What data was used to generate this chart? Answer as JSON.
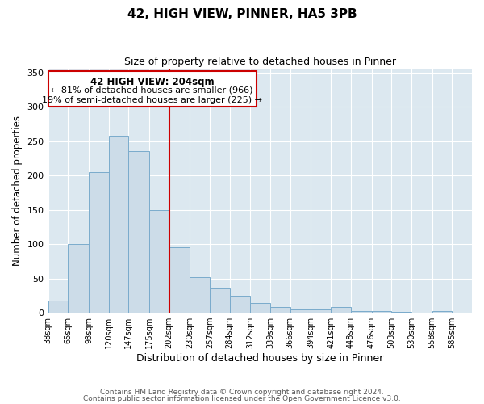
{
  "title": "42, HIGH VIEW, PINNER, HA5 3PB",
  "subtitle": "Size of property relative to detached houses in Pinner",
  "xlabel": "Distribution of detached houses by size in Pinner",
  "ylabel": "Number of detached properties",
  "bar_color": "#ccdce8",
  "bar_edge_color": "#7aabcc",
  "background_color": "#dce8f0",
  "plot_bg_color": "#dce8f0",
  "grid_color": "#ffffff",
  "bin_edges": [
    38,
    65,
    93,
    120,
    147,
    175,
    202,
    230,
    257,
    284,
    312,
    339,
    366,
    394,
    421,
    448,
    476,
    503,
    530,
    558,
    585,
    612
  ],
  "bin_labels": [
    "38sqm",
    "65sqm",
    "93sqm",
    "120sqm",
    "147sqm",
    "175sqm",
    "202sqm",
    "230sqm",
    "257sqm",
    "284sqm",
    "312sqm",
    "339sqm",
    "366sqm",
    "394sqm",
    "421sqm",
    "448sqm",
    "476sqm",
    "503sqm",
    "530sqm",
    "558sqm",
    "585sqm"
  ],
  "counts": [
    18,
    100,
    205,
    258,
    235,
    150,
    95,
    52,
    35,
    25,
    14,
    8,
    5,
    5,
    8,
    3,
    2,
    1,
    0,
    2,
    0
  ],
  "vline_x": 202,
  "vline_color": "#cc0000",
  "annotation_title": "42 HIGH VIEW: 204sqm",
  "annotation_line1": "← 81% of detached houses are smaller (966)",
  "annotation_line2": "19% of semi-detached houses are larger (225) →",
  "annotation_box_color": "#cc0000",
  "annotation_box_bg": "#ffffff",
  "ylim": [
    0,
    355
  ],
  "yticks": [
    0,
    50,
    100,
    150,
    200,
    250,
    300,
    350
  ],
  "footer1": "Contains HM Land Registry data © Crown copyright and database right 2024.",
  "footer2": "Contains public sector information licensed under the Open Government Licence v3.0."
}
